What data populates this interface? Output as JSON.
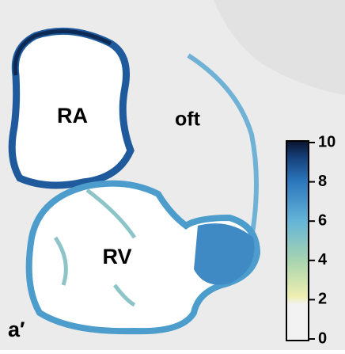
{
  "labels": {
    "ra": "RA",
    "oft": "oft",
    "rv": "RV",
    "panel": "a′"
  },
  "colorbar": {
    "lim": [
      0,
      10
    ],
    "ticks": [
      0,
      2,
      4,
      6,
      8,
      10
    ]
  }
}
